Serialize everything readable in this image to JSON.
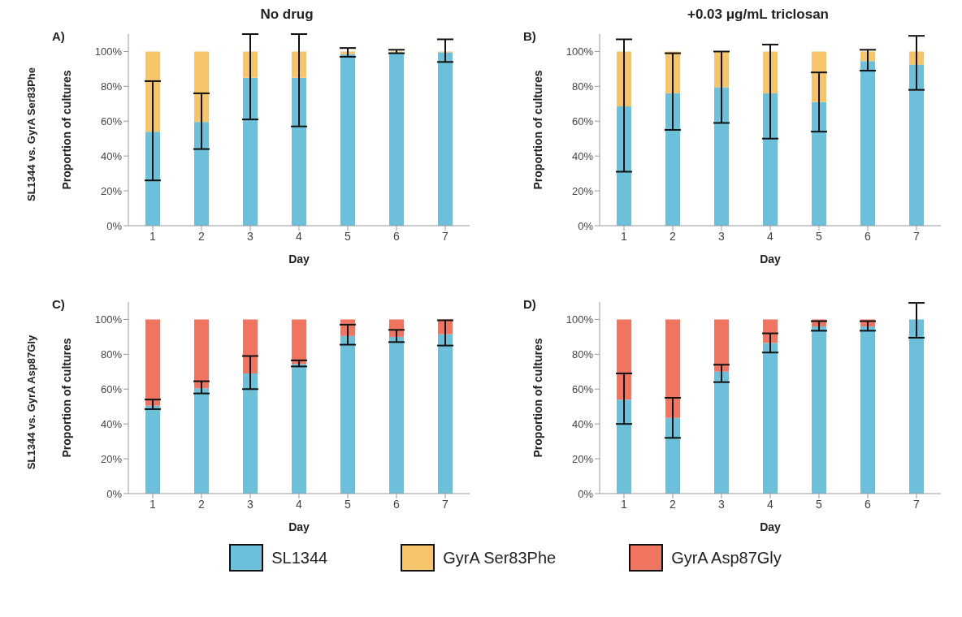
{
  "chart_data": [
    {
      "type": "bar",
      "title": "No drug",
      "annotations": [
        "A)",
        "SL1344 vs. GyrA Ser83Phe"
      ],
      "xlabel": "Day",
      "ylabel": "Proportion of cultures",
      "categories": [
        "1",
        "2",
        "3",
        "4",
        "5",
        "6",
        "7"
      ],
      "stacked": true,
      "legend": "bottom",
      "ylim": [
        0,
        110
      ],
      "yticks": [
        {
          "value": 0,
          "label": "0%"
        },
        {
          "value": 20,
          "label": "20%"
        },
        {
          "value": 40,
          "label": "40%"
        },
        {
          "value": 60,
          "label": "60%"
        },
        {
          "value": 80,
          "label": "80%"
        },
        {
          "value": 100,
          "label": "100%"
        }
      ],
      "series": [
        {
          "name": "SL1344",
          "color": "#6cc0d9",
          "values": [
            54,
            59.5,
            85,
            85,
            98.5,
            99.5,
            99.5
          ],
          "errors": [
            [
              26,
              83
            ],
            [
              44,
              76
            ],
            [
              61,
              110
            ],
            [
              57,
              110
            ],
            [
              97,
              102
            ],
            [
              99,
              101
            ],
            [
              94,
              107
            ]
          ]
        },
        {
          "name": "GyrA Ser83Phe",
          "color": "#f6c46a",
          "values": [
            46,
            40.5,
            15,
            15,
            1.5,
            0.5,
            0.5
          ]
        }
      ]
    },
    {
      "type": "bar",
      "title": "+0.03 μg/mL triclosan",
      "annotations": [
        "B)"
      ],
      "xlabel": "Day",
      "ylabel": "Proportion of cultures",
      "categories": [
        "1",
        "2",
        "3",
        "4",
        "5",
        "6",
        "7"
      ],
      "stacked": true,
      "ylim": [
        0,
        110
      ],
      "yticks": [
        {
          "value": 0,
          "label": "0%"
        },
        {
          "value": 20,
          "label": "20%"
        },
        {
          "value": 40,
          "label": "40%"
        },
        {
          "value": 60,
          "label": "60%"
        },
        {
          "value": 80,
          "label": "80%"
        },
        {
          "value": 100,
          "label": "100%"
        }
      ],
      "series": [
        {
          "color": "#6cc0d9",
          "values": [
            68.5,
            76,
            79.5,
            76,
            71,
            94.5,
            92.5
          ],
          "errors": [
            [
              31,
              107
            ],
            [
              55,
              99
            ],
            [
              59,
              100
            ],
            [
              50,
              104
            ],
            [
              54,
              88
            ],
            [
              89,
              101
            ],
            [
              78,
              109
            ]
          ]
        },
        {
          "color": "#f6c46a",
          "values": [
            31.5,
            24,
            20.5,
            24,
            29,
            5.5,
            7.5
          ]
        }
      ]
    },
    {
      "type": "bar",
      "annotations": [
        "C)",
        "SL1344 vs. GyrA Asp87Gly"
      ],
      "xlabel": "Day",
      "ylabel": "Proportion of cultures",
      "categories": [
        "1",
        "2",
        "3",
        "4",
        "5",
        "6",
        "7"
      ],
      "stacked": true,
      "legend": "bottom",
      "ylim": [
        0,
        110
      ],
      "yticks": [
        {
          "value": 0,
          "label": "0%"
        },
        {
          "value": 20,
          "label": "20%"
        },
        {
          "value": 40,
          "label": "40%"
        },
        {
          "value": 60,
          "label": "60%"
        },
        {
          "value": 80,
          "label": "80%"
        },
        {
          "value": 100,
          "label": "100%"
        }
      ],
      "series": [
        {
          "color": "#6cc0d9",
          "values": [
            50.5,
            60.5,
            69,
            74.5,
            90.5,
            90,
            91.5
          ],
          "errors": [
            [
              48.5,
              54
            ],
            [
              57.5,
              64.5
            ],
            [
              60,
              79
            ],
            [
              73,
              76.5
            ],
            [
              85.5,
              97
            ],
            [
              87,
              94
            ],
            [
              85,
              99.5
            ]
          ]
        },
        {
          "name": "GyrA Asp87Gly",
          "color": "#ef7561",
          "values": [
            49.5,
            39.5,
            31,
            25.5,
            9.5,
            10,
            8.5
          ]
        }
      ]
    },
    {
      "type": "bar",
      "annotations": [
        "D)"
      ],
      "xlabel": "Day",
      "ylabel": "Proportion of cultures",
      "categories": [
        "1",
        "2",
        "3",
        "4",
        "5",
        "6",
        "7"
      ],
      "stacked": true,
      "ylim": [
        0,
        110
      ],
      "yticks": [
        {
          "value": 0,
          "label": "0%"
        },
        {
          "value": 20,
          "label": "20%"
        },
        {
          "value": 40,
          "label": "40%"
        },
        {
          "value": 60,
          "label": "60%"
        },
        {
          "value": 80,
          "label": "80%"
        },
        {
          "value": 100,
          "label": "100%"
        }
      ],
      "series": [
        {
          "color": "#6cc0d9",
          "values": [
            54,
            43.5,
            70,
            86.5,
            96,
            96,
            100
          ],
          "errors": [
            [
              40,
              69
            ],
            [
              32,
              55
            ],
            [
              64,
              74
            ],
            [
              81,
              92
            ],
            [
              93.5,
              99
            ],
            [
              93.5,
              99
            ],
            [
              89.5,
              109.5
            ]
          ]
        },
        {
          "color": "#ef7561",
          "values": [
            46,
            56.5,
            30,
            13.5,
            4,
            4,
            0
          ]
        }
      ]
    }
  ]
}
